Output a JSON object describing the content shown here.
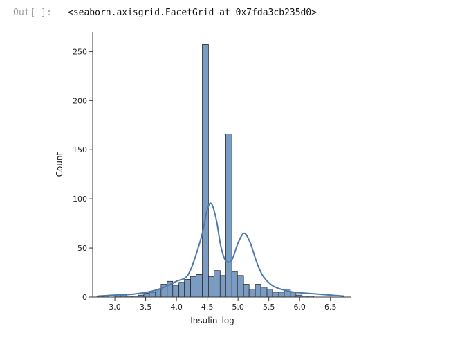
{
  "output_cell": {
    "prompt": "Out[ ]:",
    "text": "<seaborn.axisgrid.FacetGrid at 0x7fda3cb235d0>"
  },
  "chart_data": {
    "type": "bar",
    "title": "",
    "xlabel": "Insulin_log",
    "ylabel": "Count",
    "xlim": [
      2.64,
      6.84
    ],
    "ylim": [
      0,
      270
    ],
    "x_ticks": [
      "3.0",
      "3.5",
      "4.0",
      "4.5",
      "5.0",
      "5.5",
      "6.0",
      "6.5"
    ],
    "y_ticks": [
      "0",
      "50",
      "100",
      "150",
      "200",
      "250"
    ],
    "bar_color": "#7a9cc2",
    "bar_edge_color": "#2b2b2b",
    "kde_color": "#4c7ab0",
    "bins": [
      {
        "x0": 2.71,
        "x1": 2.81,
        "count": 1
      },
      {
        "x0": 2.81,
        "x1": 2.9,
        "count": 1
      },
      {
        "x0": 2.9,
        "x1": 3.0,
        "count": 0
      },
      {
        "x0": 3.0,
        "x1": 3.09,
        "count": 1
      },
      {
        "x0": 3.09,
        "x1": 3.19,
        "count": 3
      },
      {
        "x0": 3.19,
        "x1": 3.28,
        "count": 1
      },
      {
        "x0": 3.28,
        "x1": 3.38,
        "count": 1
      },
      {
        "x0": 3.38,
        "x1": 3.47,
        "count": 2
      },
      {
        "x0": 3.47,
        "x1": 3.56,
        "count": 4
      },
      {
        "x0": 3.56,
        "x1": 3.66,
        "count": 5
      },
      {
        "x0": 3.66,
        "x1": 3.75,
        "count": 8
      },
      {
        "x0": 3.75,
        "x1": 3.85,
        "count": 13
      },
      {
        "x0": 3.85,
        "x1": 3.94,
        "count": 16
      },
      {
        "x0": 3.94,
        "x1": 4.04,
        "count": 12
      },
      {
        "x0": 4.04,
        "x1": 4.13,
        "count": 15
      },
      {
        "x0": 4.13,
        "x1": 4.23,
        "count": 18
      },
      {
        "x0": 4.23,
        "x1": 4.32,
        "count": 21
      },
      {
        "x0": 4.32,
        "x1": 4.42,
        "count": 23
      },
      {
        "x0": 4.42,
        "x1": 4.52,
        "count": 257
      },
      {
        "x0": 4.52,
        "x1": 4.61,
        "count": 21
      },
      {
        "x0": 4.61,
        "x1": 4.71,
        "count": 27
      },
      {
        "x0": 4.71,
        "x1": 4.8,
        "count": 22
      },
      {
        "x0": 4.8,
        "x1": 4.9,
        "count": 166
      },
      {
        "x0": 4.9,
        "x1": 4.99,
        "count": 26
      },
      {
        "x0": 4.99,
        "x1": 5.09,
        "count": 22
      },
      {
        "x0": 5.09,
        "x1": 5.18,
        "count": 13
      },
      {
        "x0": 5.18,
        "x1": 5.28,
        "count": 8
      },
      {
        "x0": 5.28,
        "x1": 5.37,
        "count": 13
      },
      {
        "x0": 5.37,
        "x1": 5.47,
        "count": 10
      },
      {
        "x0": 5.47,
        "x1": 5.56,
        "count": 8
      },
      {
        "x0": 5.56,
        "x1": 5.66,
        "count": 5
      },
      {
        "x0": 5.66,
        "x1": 5.75,
        "count": 5
      },
      {
        "x0": 5.75,
        "x1": 5.85,
        "count": 8
      },
      {
        "x0": 5.85,
        "x1": 5.94,
        "count": 5
      },
      {
        "x0": 5.94,
        "x1": 6.04,
        "count": 2
      },
      {
        "x0": 6.04,
        "x1": 6.13,
        "count": 1
      },
      {
        "x0": 6.13,
        "x1": 6.23,
        "count": 1
      }
    ],
    "kde": {
      "x": [
        2.72,
        3.0,
        3.3,
        3.6,
        3.8,
        4.0,
        4.2,
        4.4,
        4.5,
        4.57,
        4.65,
        4.72,
        4.8,
        4.9,
        5.0,
        5.1,
        5.2,
        5.3,
        5.4,
        5.55,
        5.7,
        5.9,
        6.1,
        6.3,
        6.5,
        6.72
      ],
      "y": [
        1,
        2,
        3,
        6,
        10,
        16,
        24,
        60,
        89,
        95,
        78,
        52,
        37,
        38,
        55,
        65,
        55,
        36,
        22,
        12,
        8,
        5,
        4,
        3,
        2,
        1
      ]
    }
  }
}
